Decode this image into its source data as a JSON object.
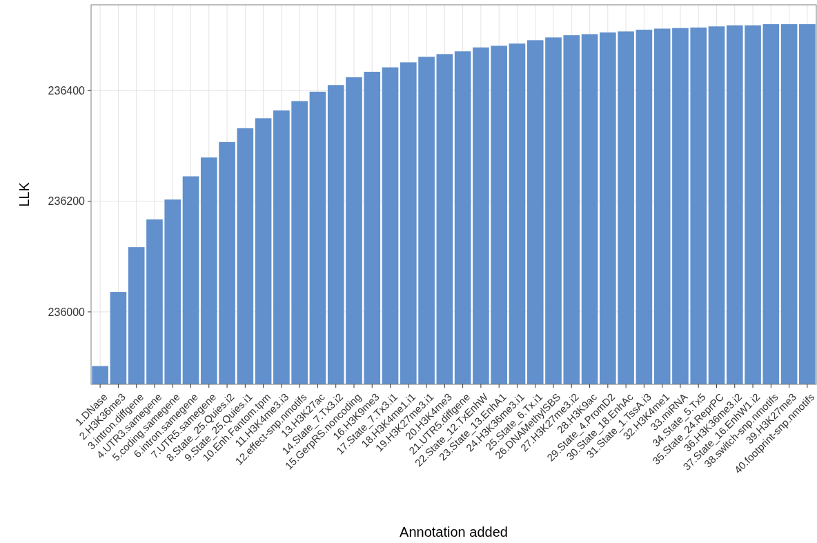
{
  "chart_data": {
    "type": "bar",
    "xlabel": "Annotation added",
    "ylabel": "LLK",
    "categories": [
      "1.DNase",
      "2.H3K36me3",
      "3.intron.diffgene",
      "4.UTR3.samegene",
      "5.coding.samegene",
      "6.intron.samegene",
      "7.UTR5.samegene",
      "8.State_25.Quies.i2",
      "9.State_25.Quies.i1",
      "10.Enh.Fantom.tpm",
      "11.H3K4me3.i3",
      "12.effect-snp.nmotifs",
      "13.H3K27ac",
      "14.State_7.Tx3.i2",
      "15.GerpRS.noncoding",
      "16.H3K9me3",
      "17.State_7.Tx3.i1",
      "18.H3K4me1.i1",
      "19.H3K27me3.i1",
      "20.H3K4me3",
      "21.UTR5.diffgene",
      "22.State_12.TxEnhW",
      "23.State_13.EnhA1",
      "24.H3K36me3.i1",
      "25.State_6.Tx.i1",
      "26.DNAMethylSBS",
      "27.H3K27me3.i2",
      "28.H3K9ac",
      "29.State_4.PromD2",
      "30.State_18.EnhAc",
      "31.State_1.TssA.i3",
      "32.H3K4me1",
      "33.miRNA",
      "34.State_5.Tx5",
      "35.State_24.ReprPC",
      "36.H3K36me3.i2",
      "37.State_16.EnhW1.i2",
      "38.switch-snp.nmotifs",
      "39.H3K27me3",
      "40.footprint-snp.nmotifs"
    ],
    "values": [
      235902,
      236036,
      236117,
      236167,
      236203,
      236245,
      236279,
      236307,
      236332,
      236350,
      236364,
      236381,
      236398,
      236410,
      236424,
      236434,
      236442,
      236451,
      236461,
      236466,
      236471,
      236478,
      236481,
      236485,
      236491,
      236496,
      236500,
      236502,
      236505,
      236507,
      236510,
      236512,
      236513,
      236514,
      236516,
      236518,
      236518,
      236520,
      236520,
      236520
    ],
    "color": "#6190cc",
    "ylim": [
      235869,
      236555
    ],
    "yticks": [
      236000,
      236200,
      236400
    ],
    "grid": true
  }
}
